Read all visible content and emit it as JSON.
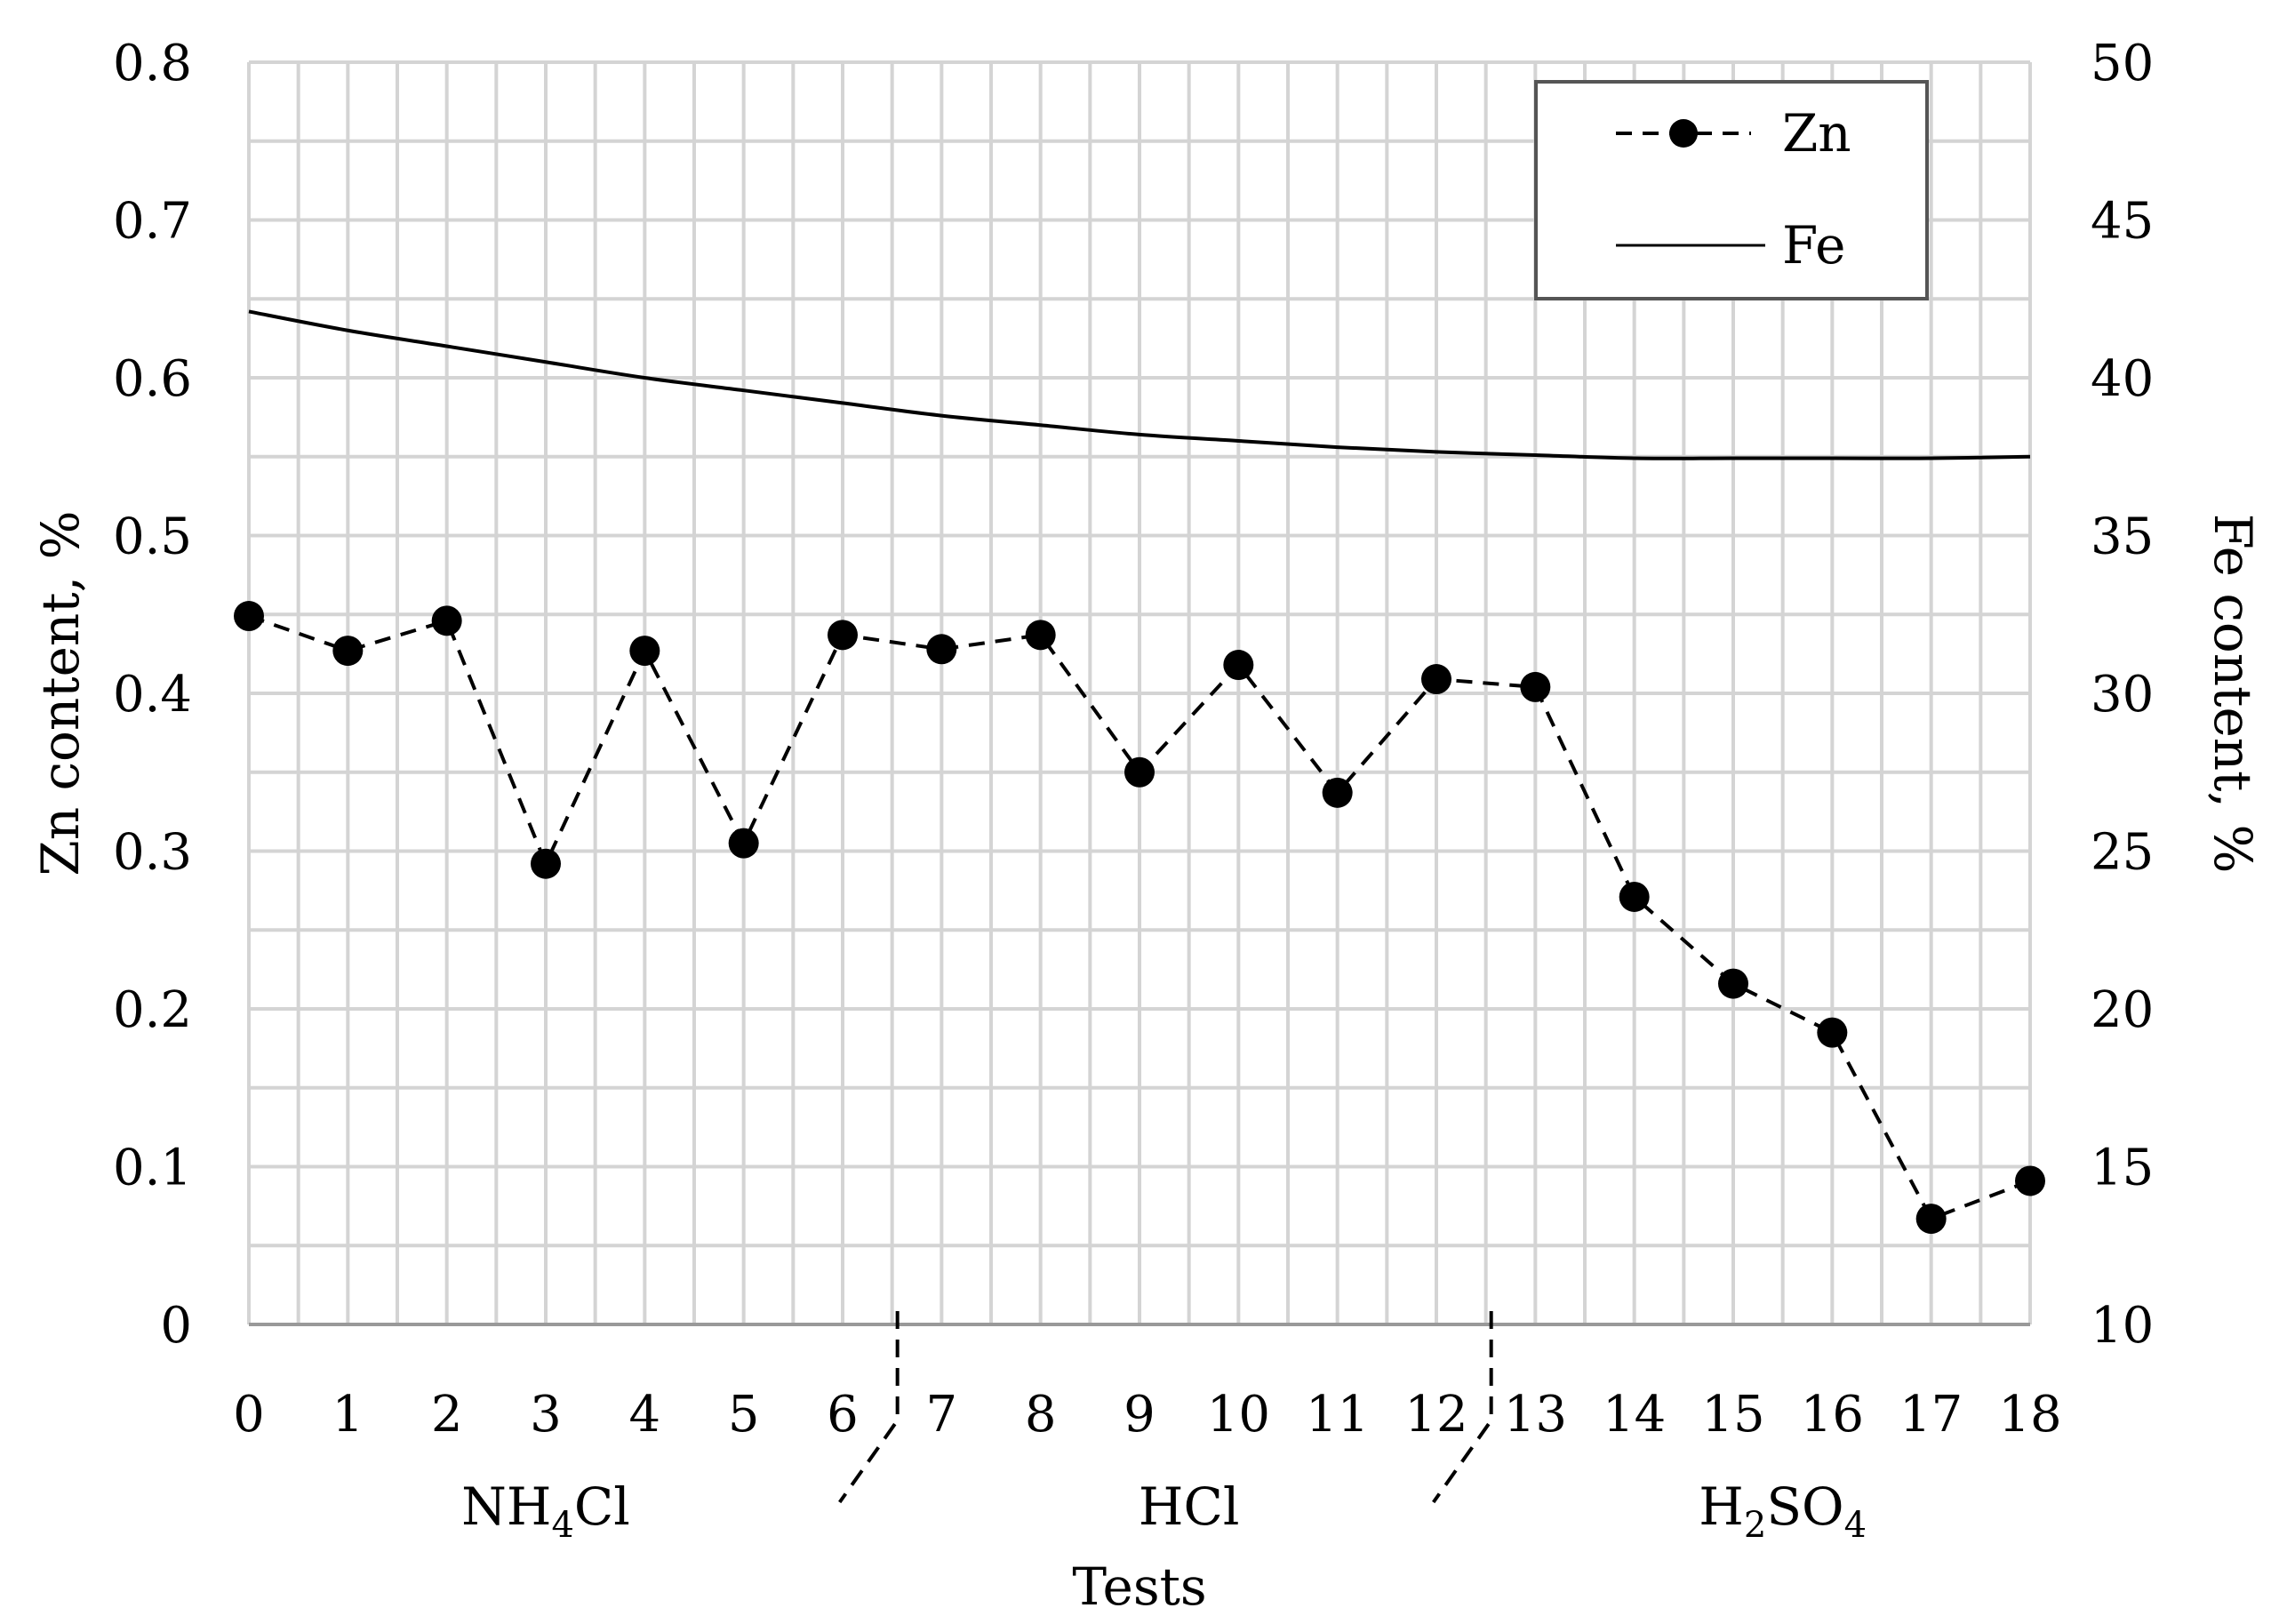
{
  "chart_data": {
    "type": "line",
    "title": "",
    "xlabel": "Tests",
    "ylabel": "Zn content, %",
    "y2label": "Fe content, %",
    "x": [
      0,
      1,
      2,
      3,
      4,
      5,
      6,
      7,
      8,
      9,
      10,
      11,
      12,
      13,
      14,
      15,
      16,
      17,
      18
    ],
    "x_tick_labels": [
      "0",
      "1",
      "2",
      "3",
      "4",
      "5",
      "6",
      "7",
      "8",
      "9",
      "10",
      "11",
      "12",
      "13",
      "14",
      "15",
      "16",
      "17",
      "18"
    ],
    "xlim": [
      0,
      18
    ],
    "ylim": [
      0,
      0.8
    ],
    "y_ticks": [
      0,
      0.1,
      0.2,
      0.3,
      0.4,
      0.5,
      0.6,
      0.7,
      0.8
    ],
    "y_tick_labels": [
      "0",
      "0.1",
      "0.2",
      "0.3",
      "0.4",
      "0.5",
      "0.6",
      "0.7",
      "0.8"
    ],
    "y2lim": [
      10,
      50
    ],
    "y2_ticks": [
      10,
      15,
      20,
      25,
      30,
      35,
      40,
      45,
      50
    ],
    "y2_tick_labels": [
      "10",
      "15",
      "20",
      "25",
      "30",
      "35",
      "40",
      "45",
      "50"
    ],
    "grid": true,
    "legend_position": "top-right",
    "series": [
      {
        "name": "Zn",
        "axis": "left",
        "style": "dashed-with-markers",
        "values": [
          0.449,
          0.427,
          0.446,
          0.292,
          0.427,
          0.305,
          0.437,
          0.428,
          0.437,
          0.35,
          0.418,
          0.337,
          0.409,
          0.404,
          0.271,
          0.216,
          0.185,
          0.067,
          0.091
        ]
      },
      {
        "name": "Fe",
        "axis": "right",
        "style": "solid",
        "values": [
          42.1,
          41.5,
          41.0,
          40.5,
          40.0,
          39.6,
          39.2,
          38.8,
          38.5,
          38.2,
          38.0,
          37.8,
          37.65,
          37.55,
          37.45,
          37.45,
          37.45,
          37.45,
          37.5
        ]
      }
    ],
    "groups": [
      {
        "label_main": "NH",
        "label_sub": "4",
        "label_tail": "Cl",
        "range": [
          0,
          6
        ]
      },
      {
        "label_main": "HCl",
        "range": [
          7,
          12
        ]
      },
      {
        "label_main": "H",
        "label_sub": "2",
        "label_tail": "SO",
        "label_sub2": "4",
        "range": [
          13,
          18
        ]
      }
    ]
  }
}
